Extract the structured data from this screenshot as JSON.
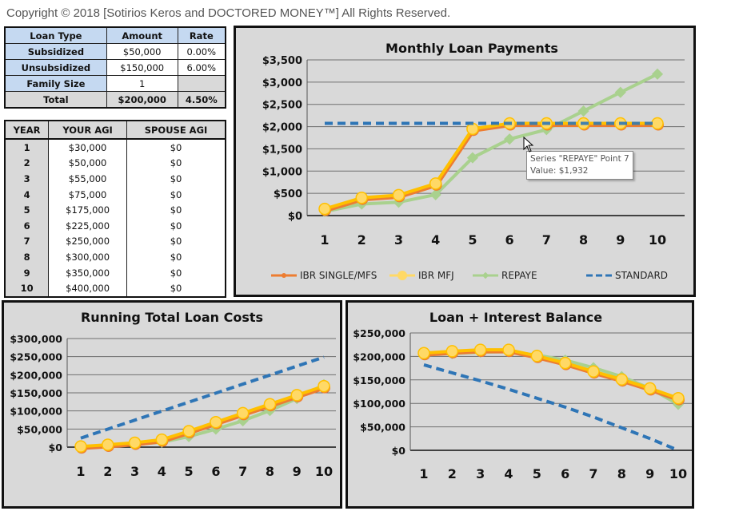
{
  "copyright": "Copyright © 2018 [Sotirios Keros and DOCTORED MONEY™] All Rights Reserved.",
  "loan_table": {
    "headers": [
      "Loan Type",
      "Amount",
      "Rate"
    ],
    "rows": [
      {
        "label": "Subsidized",
        "amount": "$50,000",
        "rate": "0.00%"
      },
      {
        "label": "Unsubsidized",
        "amount": "$150,000",
        "rate": "6.00%"
      },
      {
        "label": "Family Size",
        "amount": "1",
        "rate": ""
      }
    ],
    "total": {
      "label": "Total",
      "amount": "$200,000",
      "rate": "4.50%"
    }
  },
  "agi_table": {
    "headers": [
      "YEAR",
      "YOUR AGI",
      "SPOUSE AGI"
    ],
    "rows": [
      {
        "year": "1",
        "your_agi": "$30,000",
        "spouse_agi": "$0"
      },
      {
        "year": "2",
        "your_agi": "$50,000",
        "spouse_agi": "$0"
      },
      {
        "year": "3",
        "your_agi": "$55,000",
        "spouse_agi": "$0"
      },
      {
        "year": "4",
        "your_agi": "$75,000",
        "spouse_agi": "$0"
      },
      {
        "year": "5",
        "your_agi": "$175,000",
        "spouse_agi": "$0"
      },
      {
        "year": "6",
        "your_agi": "$225,000",
        "spouse_agi": "$0"
      },
      {
        "year": "7",
        "your_agi": "$250,000",
        "spouse_agi": "$0"
      },
      {
        "year": "8",
        "your_agi": "$300,000",
        "spouse_agi": "$0"
      },
      {
        "year": "9",
        "your_agi": "$350,000",
        "spouse_agi": "$0"
      },
      {
        "year": "10",
        "your_agi": "$400,000",
        "spouse_agi": "$0"
      }
    ]
  },
  "colors": {
    "ibr_single": "#ed7d31",
    "ibr_mfj": "#ffc000",
    "ibr_mfj_marker": "#ffd966",
    "repaye": "#a9d18e",
    "standard": "#2e75b6",
    "chart_bg": "#d9d9d9",
    "grid": "#6f6f6f"
  },
  "tooltip": {
    "line1": "Series \"REPAYE\" Point 7",
    "line2": "Value: $1,932"
  },
  "chart_data": [
    {
      "type": "line",
      "title": "Monthly Loan Payments",
      "xlabel": "",
      "ylabel": "",
      "categories": [
        "1",
        "2",
        "3",
        "4",
        "5",
        "6",
        "7",
        "8",
        "9",
        "10"
      ],
      "ylim": [
        0,
        3500
      ],
      "yticks": [
        "$0",
        "$500",
        "$1,000",
        "$1,500",
        "$2,000",
        "$2,500",
        "$3,000",
        "$3,500"
      ],
      "grid": true,
      "legend_position": "bottom",
      "legend": [
        "IBR SINGLE/MFS",
        "IBR MFJ",
        "REPAYE",
        "STANDARD"
      ],
      "series": [
        {
          "name": "IBR SINGLE/MFS",
          "values": [
            150,
            400,
            460,
            720,
            1950,
            2072,
            2072,
            2072,
            2072,
            2072
          ]
        },
        {
          "name": "IBR MFJ",
          "values": [
            150,
            400,
            460,
            720,
            1950,
            2072,
            2072,
            2072,
            2072,
            2072
          ]
        },
        {
          "name": "REPAYE",
          "values": [
            90,
            260,
            300,
            470,
            1300,
            1720,
            1932,
            2350,
            2770,
            3180
          ]
        },
        {
          "name": "STANDARD",
          "values": [
            2072,
            2072,
            2072,
            2072,
            2072,
            2072,
            2072,
            2072,
            2072,
            2072
          ]
        }
      ],
      "annotations": [
        "Series \"REPAYE\" Point 7 Value: $1,932"
      ]
    },
    {
      "type": "line",
      "title": "Running Total Loan Costs",
      "xlabel": "",
      "ylabel": "",
      "categories": [
        "1",
        "2",
        "3",
        "4",
        "5",
        "6",
        "7",
        "8",
        "9",
        "10"
      ],
      "ylim": [
        0,
        300000
      ],
      "yticks": [
        "$0",
        "$50,000",
        "$100,000",
        "$150,000",
        "$200,000",
        "$250,000",
        "$300,000"
      ],
      "grid": true,
      "series": [
        {
          "name": "IBR SINGLE/MFS",
          "values": [
            1800,
            6600,
            12100,
            20700,
            44100,
            69000,
            93900,
            118700,
            143600,
            168500
          ]
        },
        {
          "name": "IBR MFJ",
          "values": [
            1800,
            6600,
            12100,
            20700,
            44100,
            69000,
            93900,
            118700,
            143600,
            168500
          ]
        },
        {
          "name": "REPAYE",
          "values": [
            1100,
            4200,
            7800,
            13400,
            29000,
            49700,
            72800,
            101000,
            134200,
            172400
          ]
        },
        {
          "name": "STANDARD",
          "values": [
            24900,
            49700,
            74600,
            99500,
            124300,
            149200,
            174100,
            198900,
            223800,
            248600
          ]
        }
      ]
    },
    {
      "type": "line",
      "title": "Loan + Interest Balance",
      "xlabel": "",
      "ylabel": "",
      "categories": [
        "1",
        "2",
        "3",
        "4",
        "5",
        "6",
        "7",
        "8",
        "9",
        "10"
      ],
      "ylim": [
        0,
        250000
      ],
      "yticks": [
        "$0",
        "$50,000",
        "$100,000",
        "$150,000",
        "$200,000",
        "$250,000"
      ],
      "grid": true,
      "series": [
        {
          "name": "IBR SINGLE/MFS",
          "values": [
            207000,
            211000,
            214000,
            214000,
            201000,
            186000,
            168000,
            151000,
            132000,
            111000
          ]
        },
        {
          "name": "IBR MFJ",
          "values": [
            207000,
            211000,
            214000,
            214000,
            201000,
            186000,
            168000,
            151000,
            132000,
            111000
          ]
        },
        {
          "name": "REPAYE",
          "values": [
            205000,
            206000,
            209000,
            210000,
            203000,
            192000,
            176000,
            157000,
            132000,
            98000
          ]
        },
        {
          "name": "STANDARD",
          "values": [
            182000,
            165000,
            148000,
            130000,
            111000,
            92000,
            71000,
            48000,
            25000,
            0
          ]
        }
      ]
    }
  ]
}
